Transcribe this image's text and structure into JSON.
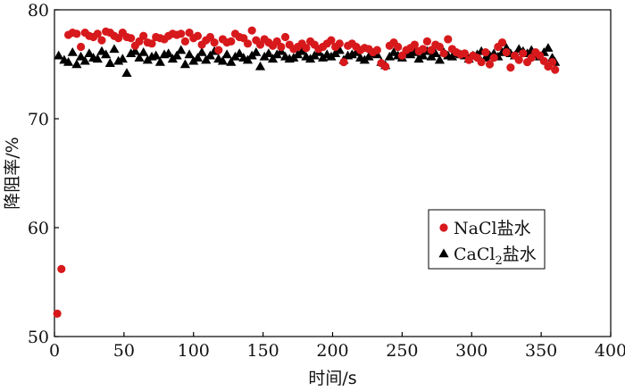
{
  "chart_data": {
    "type": "scatter",
    "xlabel": "时间/s",
    "ylabel": "降阻率/%",
    "xlim": [
      0,
      400
    ],
    "ylim": [
      50,
      80
    ],
    "xticks": [
      0,
      50,
      100,
      150,
      200,
      250,
      300,
      350,
      400
    ],
    "yticks": [
      50,
      60,
      70,
      80
    ],
    "legend_position": "center-right",
    "grid": false,
    "series": [
      {
        "name": "NaCl盐水",
        "legend_parts": [
          "NaCl盐水"
        ],
        "marker": "circle",
        "color": "#d7191c",
        "x": [
          2,
          5,
          10,
          13,
          16,
          19,
          22,
          25,
          28,
          31,
          34,
          37,
          40,
          43,
          46,
          49,
          52,
          55,
          58,
          61,
          64,
          67,
          70,
          73,
          76,
          79,
          82,
          85,
          88,
          91,
          94,
          97,
          100,
          103,
          106,
          109,
          112,
          115,
          118,
          121,
          124,
          127,
          130,
          133,
          136,
          139,
          142,
          145,
          148,
          151,
          154,
          157,
          160,
          163,
          166,
          169,
          172,
          175,
          178,
          181,
          184,
          187,
          190,
          193,
          196,
          199,
          202,
          205,
          208,
          211,
          214,
          217,
          220,
          223,
          226,
          229,
          232,
          235,
          238,
          241,
          244,
          247,
          250,
          253,
          256,
          259,
          262,
          265,
          268,
          271,
          274,
          277,
          280,
          283,
          286,
          289,
          292,
          295,
          298,
          301,
          304,
          307,
          310,
          313,
          316,
          319,
          322,
          325,
          328,
          331,
          334,
          337,
          340,
          343,
          346,
          349,
          352,
          355,
          358,
          360
        ],
        "y": [
          52.1,
          56.2,
          77.7,
          77.9,
          77.8,
          76.6,
          77.9,
          77.6,
          77.5,
          77.8,
          77.2,
          78.0,
          77.9,
          77.6,
          77.4,
          77.9,
          77.5,
          77.4,
          76.7,
          77.1,
          77.6,
          77.0,
          76.9,
          77.5,
          77.4,
          77.3,
          77.6,
          77.8,
          77.7,
          77.8,
          77.1,
          77.9,
          77.4,
          77.6,
          76.8,
          77.2,
          77.5,
          77.0,
          76.3,
          77.3,
          77.0,
          77.1,
          77.8,
          77.5,
          77.4,
          76.9,
          78.1,
          77.2,
          76.8,
          77.3,
          77.0,
          76.7,
          77.1,
          76.6,
          77.5,
          76.8,
          76.4,
          76.6,
          76.9,
          76.5,
          77.1,
          76.8,
          76.4,
          76.6,
          76.9,
          77.2,
          76.6,
          76.9,
          75.2,
          76.7,
          76.9,
          76.6,
          76.3,
          76.5,
          76.4,
          76.1,
          76.3,
          75.1,
          74.8,
          76.7,
          77.0,
          76.6,
          75.8,
          76.3,
          76.5,
          76.8,
          76.2,
          76.4,
          77.1,
          76.3,
          76.8,
          76.6,
          76.0,
          77.3,
          76.4,
          76.1,
          75.9,
          76.0,
          75.4,
          75.8,
          75.6,
          75.2,
          76.1,
          75.0,
          75.6,
          76.6,
          77.0,
          76.1,
          74.7,
          75.8,
          75.4,
          76.0,
          75.2,
          75.6,
          76.1,
          75.8,
          75.3,
          74.8,
          75.2,
          74.5
        ]
      },
      {
        "name": "CaCl₂盐水",
        "legend_parts": [
          "CaCl",
          "2",
          "盐水"
        ],
        "marker": "triangle",
        "color": "#000000",
        "x": [
          3,
          7,
          10,
          13,
          16,
          19,
          22,
          25,
          28,
          31,
          34,
          37,
          40,
          43,
          46,
          49,
          52,
          55,
          58,
          61,
          64,
          67,
          70,
          73,
          76,
          79,
          82,
          85,
          88,
          91,
          94,
          97,
          100,
          103,
          106,
          109,
          112,
          115,
          118,
          121,
          124,
          127,
          130,
          133,
          136,
          139,
          142,
          145,
          148,
          151,
          154,
          157,
          160,
          163,
          166,
          169,
          172,
          175,
          178,
          181,
          184,
          187,
          190,
          193,
          196,
          199,
          202,
          205,
          208,
          211,
          214,
          217,
          220,
          223,
          226,
          229,
          232,
          235,
          238,
          241,
          244,
          247,
          250,
          253,
          256,
          259,
          262,
          265,
          268,
          271,
          274,
          277,
          280,
          283,
          286,
          289,
          292,
          295,
          298,
          301,
          304,
          307,
          310,
          313,
          316,
          319,
          322,
          325,
          328,
          331,
          334,
          337,
          340,
          343,
          346,
          349,
          352,
          355,
          358,
          360
        ],
        "y": [
          75.8,
          75.4,
          75.2,
          76.1,
          75.0,
          75.7,
          75.3,
          76.0,
          75.6,
          75.5,
          76.2,
          75.9,
          75.1,
          76.4,
          75.3,
          75.5,
          74.2,
          76.0,
          76.2,
          75.6,
          76.1,
          75.4,
          75.7,
          75.8,
          75.2,
          75.9,
          76.0,
          75.5,
          75.8,
          76.3,
          75.0,
          75.9,
          75.3,
          75.6,
          76.1,
          75.4,
          75.8,
          76.2,
          75.5,
          75.3,
          75.9,
          75.2,
          75.7,
          76.0,
          75.6,
          75.4,
          75.8,
          76.1,
          74.8,
          75.7,
          76.0,
          75.5,
          75.9,
          76.2,
          75.7,
          75.5,
          75.6,
          75.9,
          76.2,
          75.7,
          75.5,
          75.8,
          76.1,
          75.6,
          75.9,
          75.7,
          76.0,
          76.3,
          75.4,
          75.8,
          75.9,
          76.1,
          75.6,
          75.4,
          75.7,
          76.0,
          75.9,
          75.2,
          74.9,
          75.7,
          76.1,
          75.8,
          75.6,
          76.0,
          75.9,
          76.1,
          75.5,
          75.8,
          76.2,
          75.7,
          76.0,
          75.4,
          76.1,
          75.8,
          75.7,
          76.0,
          75.9,
          75.8,
          75.5,
          75.8,
          75.9,
          76.2,
          75.6,
          75.8,
          76.0,
          75.7,
          76.1,
          76.5,
          76.0,
          75.8,
          76.4,
          76.2,
          76.0,
          76.3,
          75.9,
          75.7,
          76.1,
          76.5,
          75.6,
          75.2
        ]
      }
    ]
  }
}
